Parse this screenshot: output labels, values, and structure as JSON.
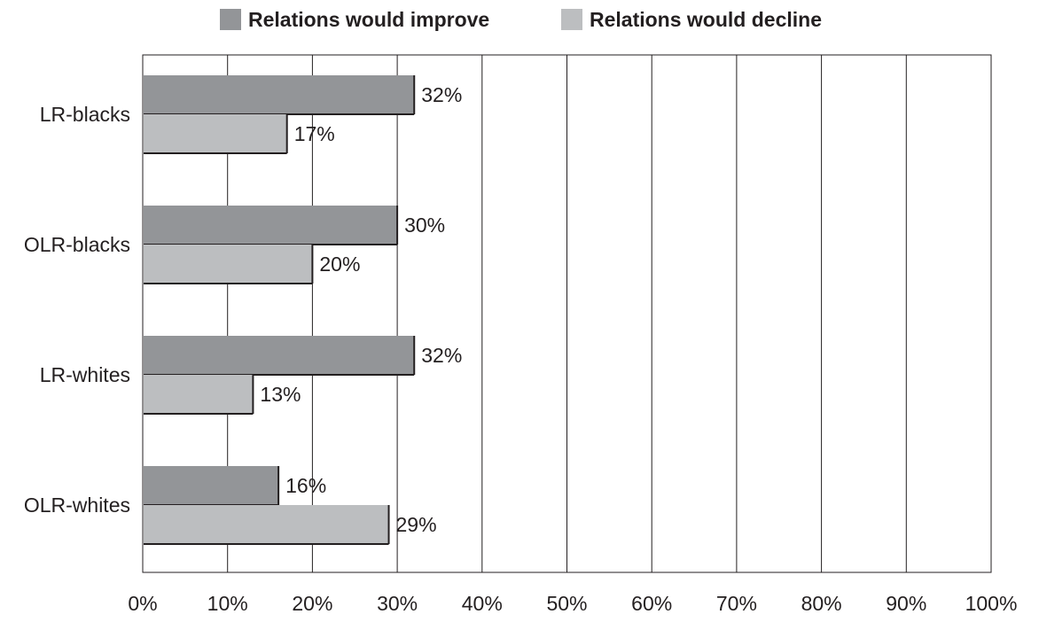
{
  "chart_data": {
    "type": "bar",
    "orientation": "horizontal",
    "title": "",
    "xlabel": "",
    "ylabel": "",
    "xlim": [
      0,
      100
    ],
    "x_ticks": [
      "0%",
      "10%",
      "20%",
      "30%",
      "40%",
      "50%",
      "60%",
      "70%",
      "80%",
      "90%",
      "100%"
    ],
    "grid": "vertical",
    "legend_position": "top-center",
    "categories": [
      "LR-blacks",
      "OLR-blacks",
      "LR-whites",
      "OLR-whites"
    ],
    "series": [
      {
        "name": "Relations would improve",
        "color": "#939598",
        "values": [
          32,
          30,
          32,
          16
        ],
        "labels": [
          "32%",
          "30%",
          "32%",
          "16%"
        ]
      },
      {
        "name": "Relations would decline",
        "color": "#bcbec0",
        "values": [
          17,
          20,
          13,
          29
        ],
        "labels": [
          "17%",
          "20%",
          "13%",
          "29%"
        ]
      }
    ]
  }
}
